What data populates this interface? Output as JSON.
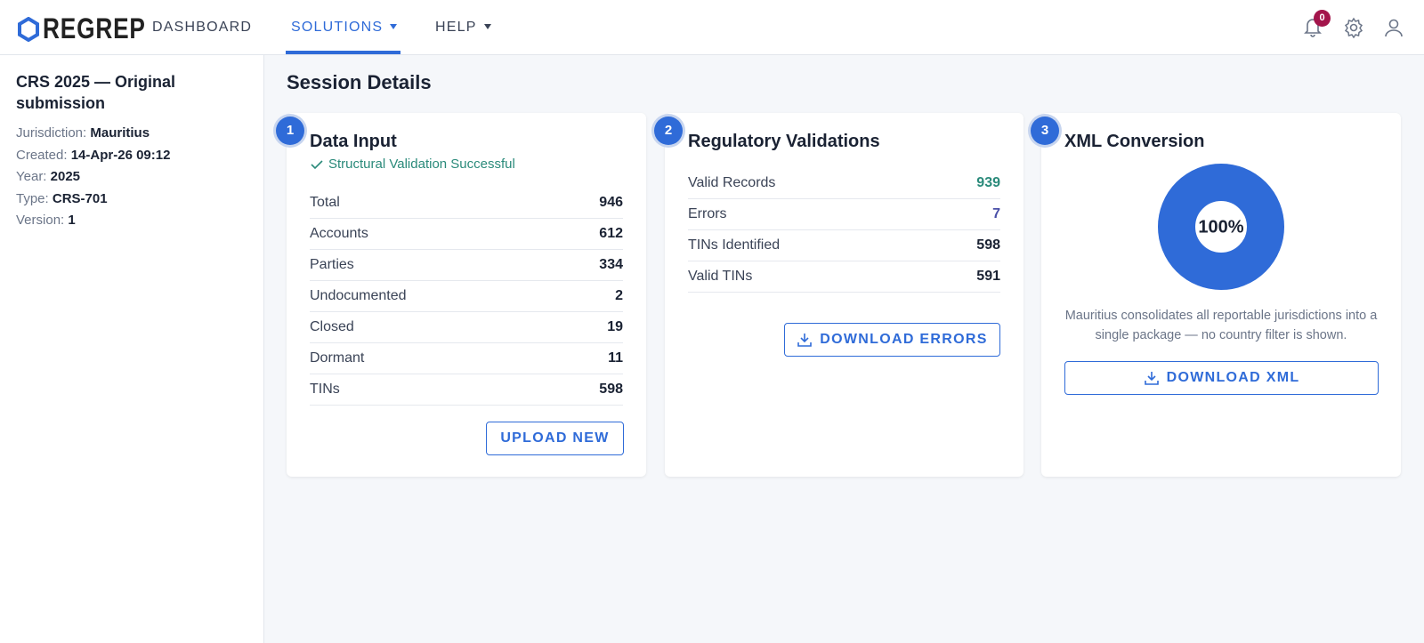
{
  "header": {
    "logo": "REGREP",
    "nav": [
      "DASHBOARD",
      "SOLUTIONS",
      "HELP"
    ],
    "notifications": 0
  },
  "sidebar": {
    "title": "CRS 2025 — Original submission",
    "fields": [
      {
        "label": "Jurisdiction:",
        "value": "Mauritius"
      },
      {
        "label": "Created:",
        "value": "14-Apr-26 09:12"
      },
      {
        "label": "Year:",
        "value": "2025"
      },
      {
        "label": "Type:",
        "value": "CRS-701"
      },
      {
        "label": "Version:",
        "value": "1"
      }
    ]
  },
  "main": {
    "title": "Session Details",
    "steps": [
      {
        "number": 1,
        "title": "Data Input",
        "status": "Structural Validation Successful",
        "rows": [
          {
            "label": "Total",
            "value": 946
          },
          {
            "label": "Accounts",
            "value": 612
          },
          {
            "label": "Parties",
            "value": 334
          },
          {
            "label": "Undocumented",
            "value": 2
          },
          {
            "label": "Closed",
            "value": 19
          },
          {
            "label": "Dormant",
            "value": 11
          },
          {
            "label": "TINs",
            "value": 598
          }
        ],
        "button": "UPLOAD NEW"
      },
      {
        "number": 2,
        "title": "Regulatory Validations",
        "rows": [
          {
            "label": "Valid Records",
            "value": 939
          },
          {
            "label": "Errors",
            "value": 7
          },
          {
            "label": "TINs Identified",
            "value": 598
          },
          {
            "label": "Valid TINs",
            "value": 591
          }
        ],
        "button": "DOWNLOAD ERRORS"
      },
      {
        "number": 3,
        "title": "XML Conversion",
        "progress": {
          "value": 100,
          "label": "100%"
        },
        "note": "Mauritius consolidates all reportable jurisdictions into a single package — no country filter is shown.",
        "button": "DOWNLOAD XML"
      }
    ]
  }
}
